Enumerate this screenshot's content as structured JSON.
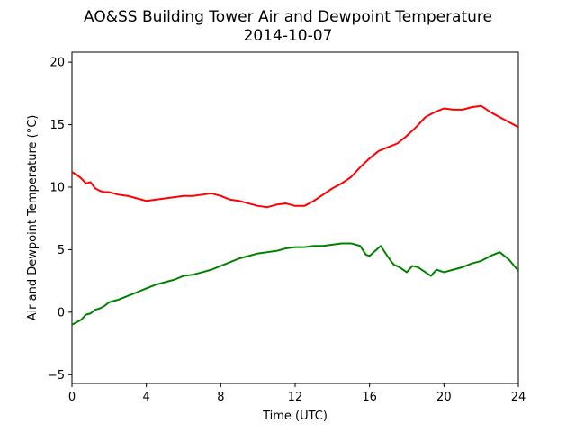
{
  "chart_data": {
    "type": "line",
    "title": "AO&SS Building Tower Air and Dewpoint Temperature",
    "subtitle": "2014-10-07",
    "xlabel": "Time (UTC)",
    "ylabel": "Air and Dewpoint Temperature (°C)",
    "xlim": [
      0,
      24
    ],
    "ylim": [
      -5.7,
      20.8
    ],
    "xticks": [
      0,
      4,
      8,
      12,
      16,
      20,
      24
    ],
    "yticks": [
      -5,
      0,
      5,
      10,
      15,
      20
    ],
    "grid": false,
    "legend": "none",
    "series": [
      {
        "color": "#ff0000",
        "x": [
          0,
          0.25,
          0.5,
          0.75,
          1.0,
          1.25,
          1.5,
          1.75,
          2.0,
          2.5,
          3.0,
          3.5,
          4.0,
          4.5,
          5.0,
          5.5,
          6.0,
          6.5,
          7.0,
          7.5,
          8.0,
          8.5,
          9.0,
          9.5,
          10.0,
          10.5,
          11.0,
          11.5,
          12.0,
          12.5,
          13.0,
          13.5,
          14.0,
          14.5,
          15.0,
          15.5,
          16.0,
          16.5,
          17.0,
          17.5,
          18.0,
          18.5,
          19.0,
          19.5,
          20.0,
          20.5,
          21.0,
          21.5,
          22.0,
          22.5,
          23.0,
          23.5,
          24.0
        ],
        "values": [
          11.2,
          11.0,
          10.7,
          10.3,
          10.4,
          9.9,
          9.7,
          9.6,
          9.6,
          9.4,
          9.3,
          9.1,
          8.9,
          9.0,
          9.1,
          9.2,
          9.3,
          9.3,
          9.4,
          9.5,
          9.3,
          9.0,
          8.9,
          8.7,
          8.5,
          8.4,
          8.6,
          8.7,
          8.5,
          8.5,
          8.9,
          9.4,
          9.9,
          10.3,
          10.8,
          11.6,
          12.3,
          12.9,
          13.2,
          13.5,
          14.1,
          14.8,
          15.6,
          16.0,
          16.3,
          16.2,
          16.2,
          16.4,
          16.5,
          16.0,
          15.6,
          15.2,
          14.8
        ]
      },
      {
        "color": "#008000",
        "x": [
          0,
          0.25,
          0.5,
          0.75,
          1.0,
          1.25,
          1.5,
          1.75,
          2.0,
          2.5,
          3.0,
          3.5,
          4.0,
          4.5,
          5.0,
          5.5,
          6.0,
          6.5,
          7.0,
          7.5,
          8.0,
          8.5,
          9.0,
          9.5,
          10.0,
          10.5,
          11.0,
          11.5,
          12.0,
          12.5,
          13.0,
          13.5,
          14.0,
          14.5,
          15.0,
          15.5,
          15.8,
          16.0,
          16.3,
          16.6,
          17.0,
          17.3,
          17.6,
          18.0,
          18.3,
          18.6,
          19.0,
          19.3,
          19.6,
          20.0,
          20.5,
          21.0,
          21.5,
          22.0,
          22.5,
          23.0,
          23.5,
          24.0
        ],
        "values": [
          -1.0,
          -0.8,
          -0.6,
          -0.2,
          -0.1,
          0.2,
          0.3,
          0.5,
          0.8,
          1.0,
          1.3,
          1.6,
          1.9,
          2.2,
          2.4,
          2.6,
          2.9,
          3.0,
          3.2,
          3.4,
          3.7,
          4.0,
          4.3,
          4.5,
          4.7,
          4.8,
          4.9,
          5.1,
          5.2,
          5.2,
          5.3,
          5.3,
          5.4,
          5.5,
          5.5,
          5.3,
          4.6,
          4.5,
          4.9,
          5.3,
          4.4,
          3.8,
          3.6,
          3.2,
          3.7,
          3.6,
          3.2,
          2.9,
          3.4,
          3.2,
          3.4,
          3.6,
          3.9,
          4.1,
          4.5,
          4.8,
          4.2,
          3.3
        ]
      }
    ]
  }
}
